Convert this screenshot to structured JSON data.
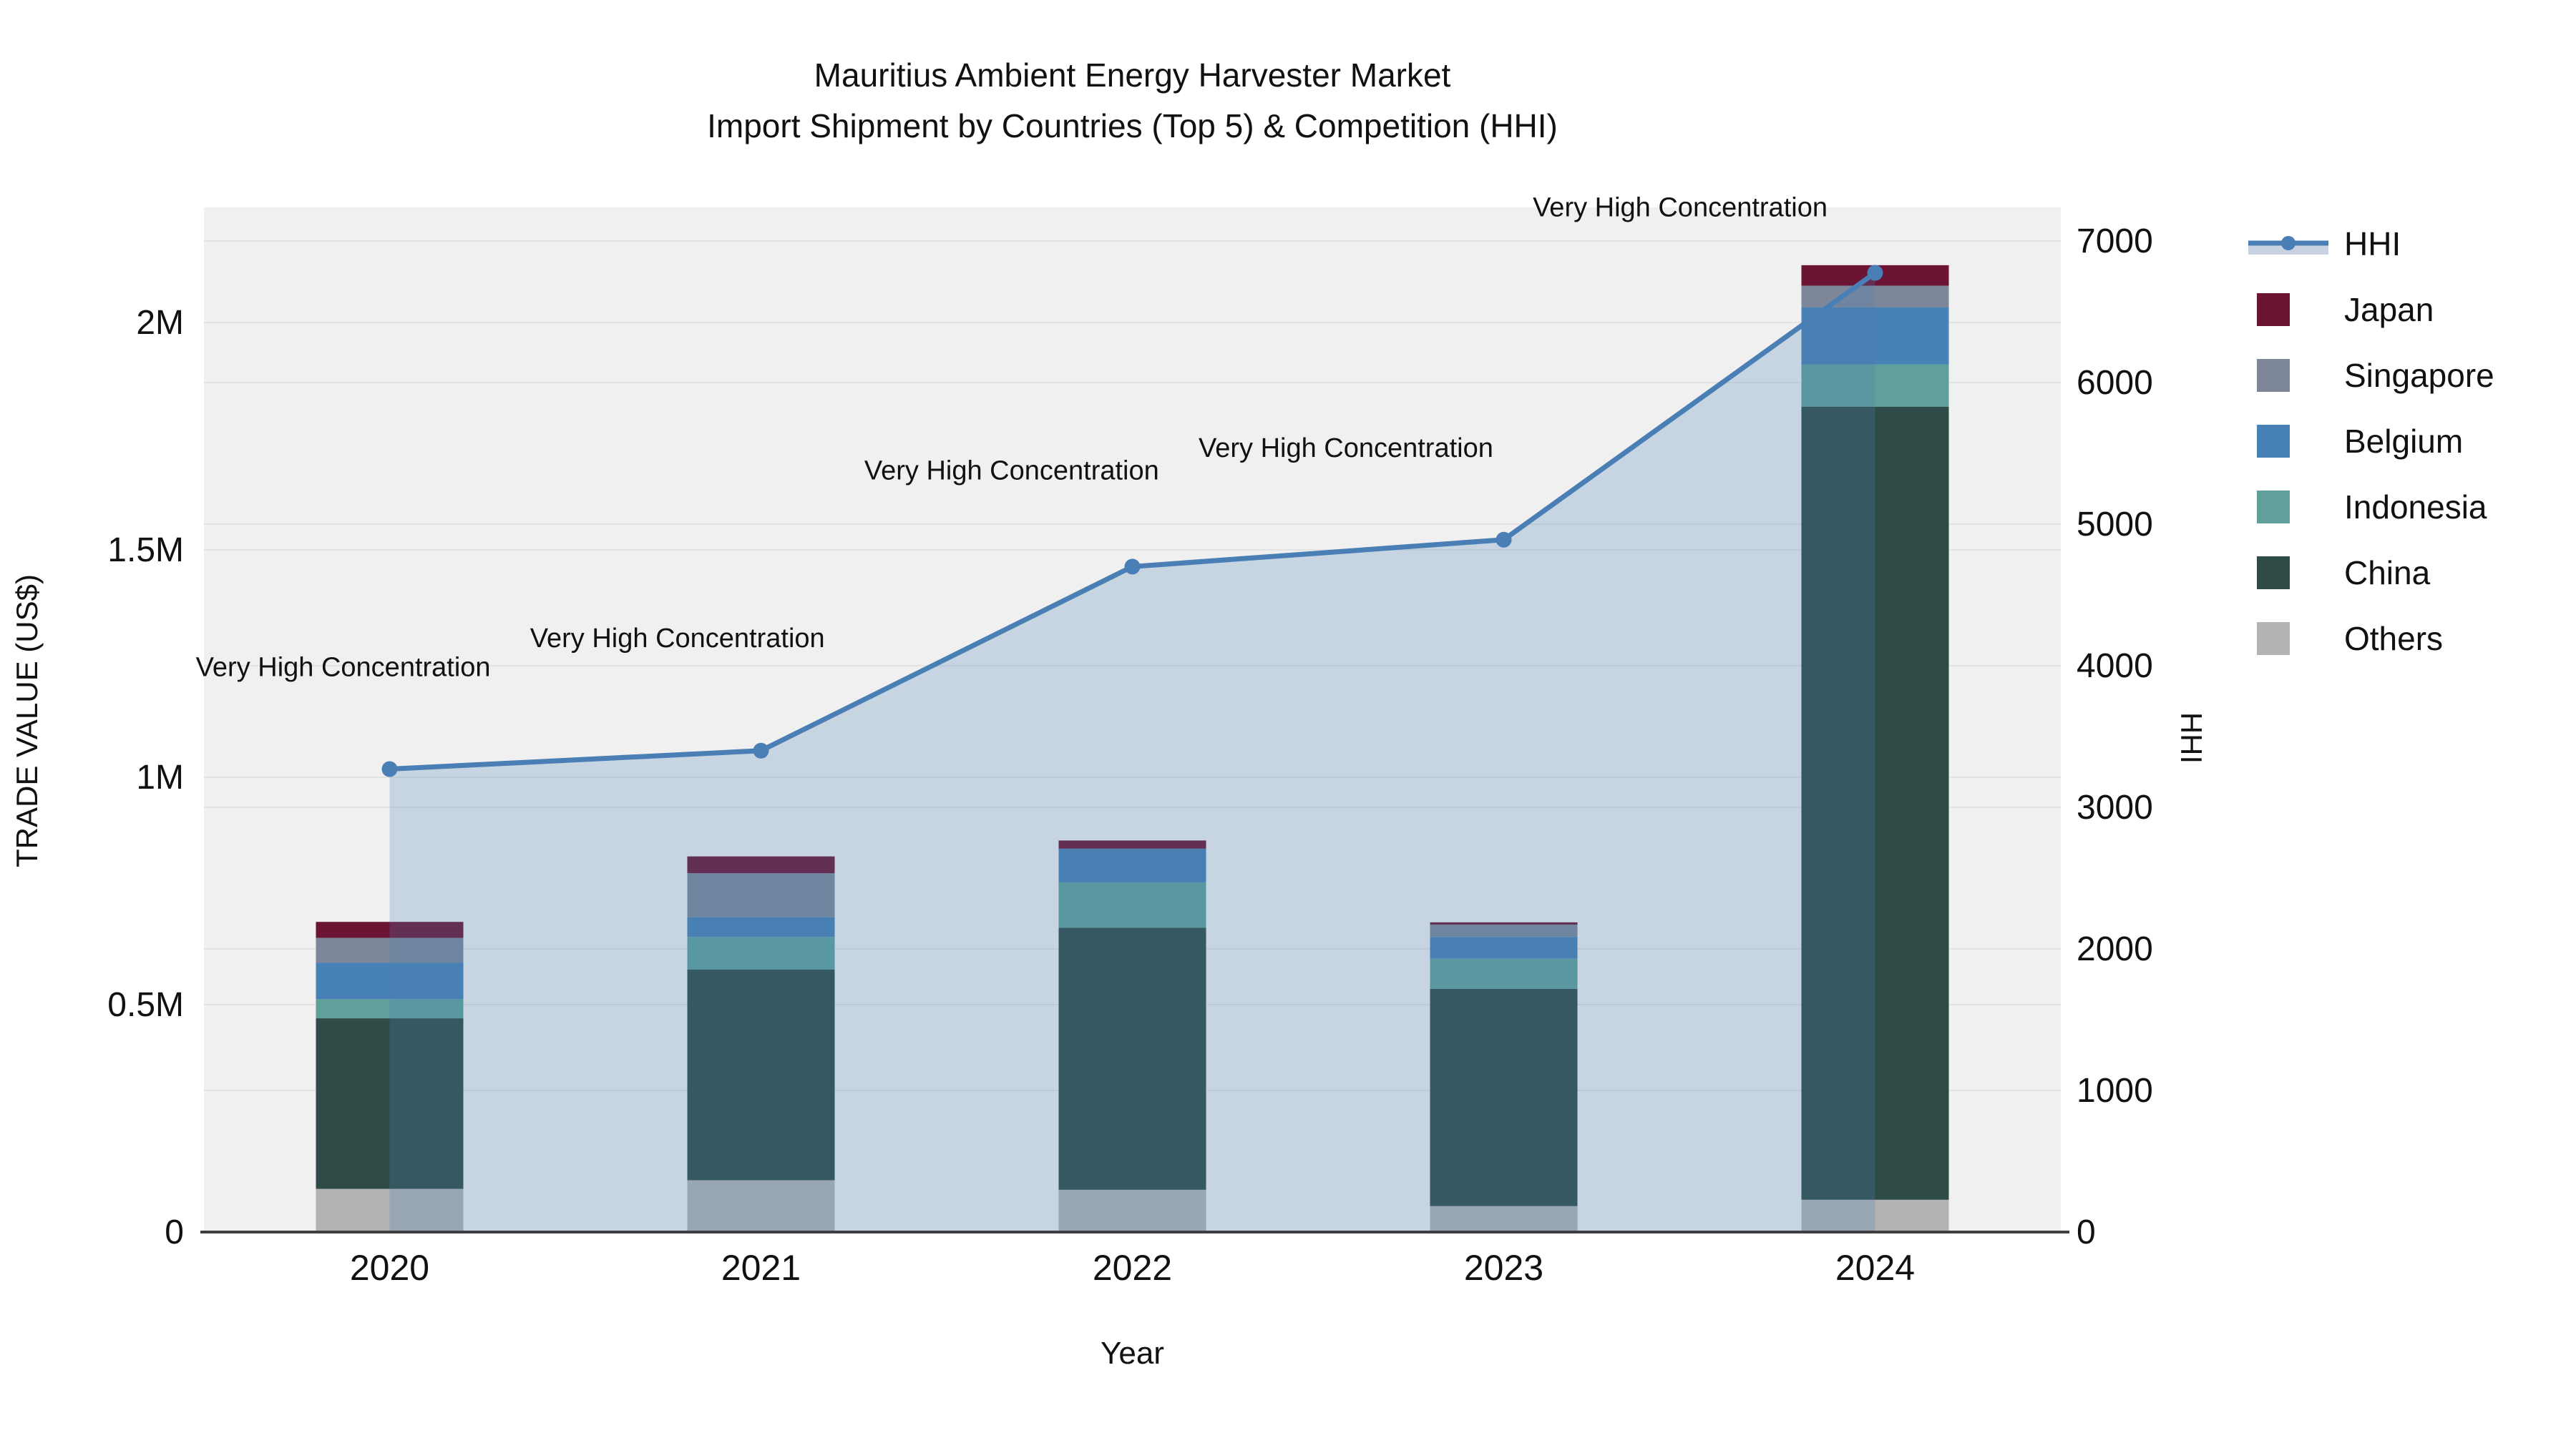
{
  "title": {
    "line1": "Mauritius Ambient Energy Harvester Market",
    "line2": "Import Shipment by Countries (Top 5) & Competition (HHI)"
  },
  "axes": {
    "x": {
      "title": "Year",
      "tick_labels": [
        "2020",
        "2021",
        "2022",
        "2023",
        "2024"
      ]
    },
    "y_left": {
      "title": "TRADE VALUE (US$)",
      "tick_labels": [
        "0",
        "0.5M",
        "1M",
        "1.5M",
        "2M"
      ],
      "tick_values": [
        0,
        500000,
        1000000,
        1500000,
        2000000
      ]
    },
    "y_right": {
      "title": "HHI",
      "tick_labels": [
        "0",
        "1000",
        "2000",
        "3000",
        "4000",
        "5000",
        "6000",
        "7000"
      ],
      "tick_values": [
        0,
        1000,
        2000,
        3000,
        4000,
        5000,
        6000,
        7000
      ]
    }
  },
  "legend": {
    "items": [
      {
        "id": "hhi",
        "label": "HHI",
        "kind": "line",
        "color": "#4A7FB5",
        "area_color": "#c9d2e0"
      },
      {
        "id": "japan",
        "label": "Japan",
        "kind": "swatch",
        "color": "#6B1434"
      },
      {
        "id": "singapore",
        "label": "Singapore",
        "kind": "swatch",
        "color": "#7D8799"
      },
      {
        "id": "belgium",
        "label": "Belgium",
        "kind": "swatch",
        "color": "#4781B5"
      },
      {
        "id": "indonesia",
        "label": "Indonesia",
        "kind": "swatch",
        "color": "#5FA09B"
      },
      {
        "id": "china",
        "label": "China",
        "kind": "swatch",
        "color": "#2E4B47"
      },
      {
        "id": "others",
        "label": "Others",
        "kind": "swatch",
        "color": "#B3B3B3"
      }
    ]
  },
  "chart_data": {
    "type": "bar+line",
    "title": "Mauritius Ambient Energy Harvester Market",
    "subtitle": "Import Shipment by Countries (Top 5) & Competition (HHI)",
    "categories": [
      "2020",
      "2021",
      "2022",
      "2023",
      "2024"
    ],
    "xlabel": "Year",
    "ylabel_left": "TRADE VALUE (US$)",
    "ylabel_right": "HHI",
    "ylim_left": [
      0,
      2250000
    ],
    "ylim_right": [
      0,
      7000
    ],
    "grid": true,
    "legend_position": "right",
    "plot_bg": "#f0f0f0",
    "grid_color": "#e3e3e3",
    "axis_line_color": "#3f3f3f",
    "stack_order_bottom_to_top": [
      "Others",
      "China",
      "Indonesia",
      "Belgium",
      "Singapore",
      "Japan"
    ],
    "series": [
      {
        "name": "Japan",
        "color": "#6B1434",
        "values": [
          35000,
          37000,
          18000,
          5000,
          45000
        ]
      },
      {
        "name": "Singapore",
        "color": "#7D8799",
        "values": [
          55000,
          97000,
          0,
          27000,
          48000
        ]
      },
      {
        "name": "Belgium",
        "color": "#4781B5",
        "values": [
          80000,
          43000,
          74000,
          48000,
          125000
        ]
      },
      {
        "name": "Indonesia",
        "color": "#5FA09B",
        "values": [
          42000,
          72000,
          100000,
          66000,
          93000
        ]
      },
      {
        "name": "China",
        "color": "#2E4B47",
        "values": [
          375000,
          463000,
          576000,
          478000,
          1744000
        ]
      },
      {
        "name": "Others",
        "color": "#B3B3B3",
        "values": [
          95000,
          114000,
          93000,
          57000,
          71000
        ]
      }
    ],
    "line_series": {
      "name": "HHI",
      "axis": "right",
      "color": "#4A7FB5",
      "area_fill": "rgba(74,127,181,0.25)",
      "values": [
        3270,
        3400,
        4700,
        4890,
        6775
      ]
    },
    "annotations": [
      {
        "year": "2020",
        "text": "Very High Concentration"
      },
      {
        "year": "2021",
        "text": "Very High Concentration"
      },
      {
        "year": "2022",
        "text": "Very High Concentration"
      },
      {
        "year": "2023",
        "text": "Very High Concentration"
      },
      {
        "year": "2024",
        "text": "Very High Concentration"
      }
    ]
  }
}
